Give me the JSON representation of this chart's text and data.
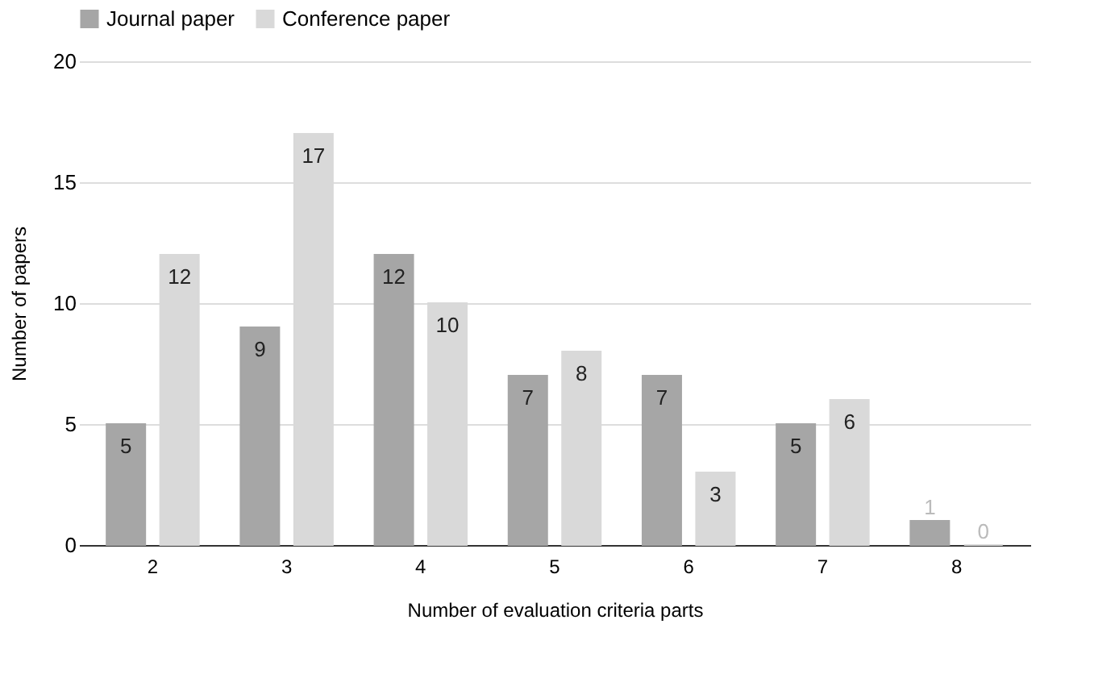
{
  "chart_data": {
    "type": "bar",
    "xlabel": "Number of evaluation criteria parts",
    "ylabel": "Number of papers",
    "categories": [
      "2",
      "3",
      "4",
      "5",
      "6",
      "7",
      "8"
    ],
    "series": [
      {
        "name": "Journal paper",
        "color": "#a6a6a6",
        "values": [
          5,
          9,
          12,
          7,
          7,
          5,
          1
        ]
      },
      {
        "name": "Conference paper",
        "color": "#d9d9d9",
        "values": [
          12,
          17,
          10,
          8,
          3,
          6,
          0
        ]
      }
    ],
    "ylim": [
      0,
      20
    ],
    "yticks": [
      0,
      5,
      10,
      15,
      20
    ],
    "grid": "y",
    "legend": "top",
    "data_labels": true
  }
}
